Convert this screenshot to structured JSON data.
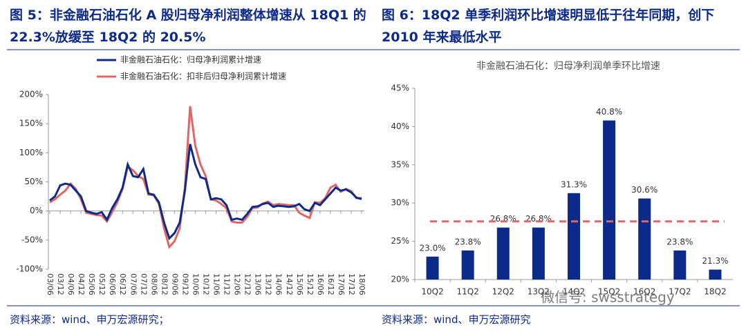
{
  "chart_data": [
    {
      "type": "line",
      "caption": "图 5：非金融石油石化 A 股归母净利润整体增速从 18Q1 的 22.3%放缓至 18Q2 的 20.5%",
      "source": "资料来源：wind、申万宏源研究；",
      "categories": [
        "03/06",
        null,
        "03/12",
        null,
        "04/06",
        null,
        "04/12",
        null,
        "05/06",
        null,
        "05/12",
        null,
        "06/06",
        null,
        "06/12",
        null,
        "07/06",
        null,
        "07/12",
        null,
        "08/06",
        null,
        "08/12",
        null,
        "09/06",
        null,
        "09/12",
        null,
        "10/06",
        null,
        "10/12",
        null,
        "11/06",
        null,
        "11/12",
        null,
        "12/06",
        null,
        "12/12",
        null,
        "13/06",
        null,
        "13/12",
        null,
        "14/06",
        null,
        "14/12",
        null,
        "15/06",
        null,
        "15/12",
        null,
        "16/06",
        null,
        "16/12",
        null,
        "17/06",
        null,
        "17/12",
        null,
        "18/06"
      ],
      "series": [
        {
          "name": "非金融石油石化：归母净利润累计增速",
          "color": "#0c2a8a",
          "values": [
            18,
            25,
            44,
            47,
            45,
            35,
            25,
            0,
            -3,
            -5,
            -2,
            -15,
            5,
            20,
            40,
            80,
            60,
            58,
            72,
            30,
            28,
            15,
            -20,
            -47,
            -38,
            -20,
            35,
            115,
            80,
            58,
            55,
            20,
            22,
            20,
            10,
            -15,
            -13,
            -15,
            -5,
            7,
            8,
            12,
            14,
            7,
            9,
            8,
            7,
            8,
            12,
            3,
            0,
            14,
            10,
            20,
            30,
            40,
            35,
            37,
            32,
            23,
            20.5
          ]
        },
        {
          "name": "非金融石油石化：扣非后归母净利润累计增速",
          "color": "#e06666",
          "values": [
            15,
            20,
            28,
            35,
            47,
            38,
            20,
            -3,
            -5,
            -7,
            -8,
            -18,
            -2,
            15,
            38,
            76,
            70,
            60,
            55,
            28,
            27,
            12,
            -30,
            -62,
            -52,
            -30,
            40,
            180,
            112,
            80,
            60,
            20,
            18,
            12,
            5,
            -18,
            -20,
            -20,
            -10,
            5,
            6,
            13,
            16,
            10,
            12,
            11,
            10,
            10,
            -3,
            -8,
            -12,
            15,
            14,
            22,
            40,
            45,
            33,
            38,
            34,
            22,
            22.3
          ]
        }
      ],
      "ylim": [
        -100,
        200
      ],
      "yticks": [
        {
          "value": -100,
          "label": "-100%"
        },
        {
          "value": -50,
          "label": "-50%"
        },
        {
          "value": 0,
          "label": "0%"
        },
        {
          "value": 50,
          "label": "50%"
        },
        {
          "value": 100,
          "label": "100%"
        },
        {
          "value": 150,
          "label": "150%"
        },
        {
          "value": 200,
          "label": "200%"
        }
      ]
    },
    {
      "type": "bar",
      "caption": "图 6：18Q2 单季利润环比增速明显低于往年同期，创下 2010 年来最低水平",
      "source": "资料来源：wind、申万宏源研究",
      "title": "非金融石油石化：归母净利润单季环比增速",
      "watermark": "微信号: swsstrategy",
      "categories": [
        "10Q2",
        "11Q2",
        "12Q2",
        "13Q2",
        "14Q2",
        "15Q2",
        "16Q2",
        "17Q2",
        "18Q2"
      ],
      "values": [
        23.0,
        23.8,
        26.8,
        26.8,
        31.3,
        40.8,
        30.6,
        23.8,
        21.3
      ],
      "value_labels": [
        "23.0%",
        "23.8%",
        "26.8%",
        "26.8%",
        "31.3%",
        "40.8%",
        "30.6%",
        "23.8%",
        "21.3%"
      ],
      "color": "#0c2a8a",
      "reference_line": 27.6,
      "reference_color": "#e06666",
      "ylim": [
        20,
        45
      ],
      "yticks": [
        {
          "value": 20,
          "label": "20%"
        },
        {
          "value": 25,
          "label": "25%"
        },
        {
          "value": 30,
          "label": "30%"
        },
        {
          "value": 35,
          "label": "35%"
        },
        {
          "value": 40,
          "label": "40%"
        },
        {
          "value": 45,
          "label": "45%"
        }
      ]
    }
  ]
}
